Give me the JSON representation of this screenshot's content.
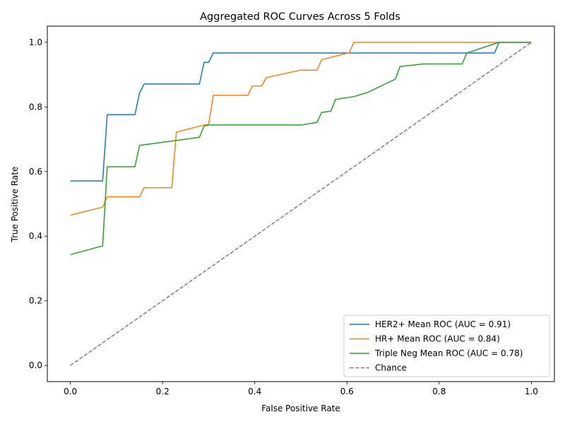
{
  "chart_data": {
    "type": "line",
    "title": "Aggregated ROC Curves Across 5 Folds",
    "xlabel": "False Positive Rate",
    "ylabel": "True Positive Rate",
    "xlim": [
      -0.05,
      1.05
    ],
    "ylim": [
      -0.05,
      1.05
    ],
    "xticks": [
      0.0,
      0.2,
      0.4,
      0.6,
      0.8,
      1.0
    ],
    "yticks": [
      0.0,
      0.2,
      0.4,
      0.6,
      0.8,
      1.0
    ],
    "xtick_labels": [
      "0.0",
      "0.2",
      "0.4",
      "0.6",
      "0.8",
      "1.0"
    ],
    "ytick_labels": [
      "0.0",
      "0.2",
      "0.4",
      "0.6",
      "0.8",
      "1.0"
    ],
    "grid": false,
    "legend_position": "lower-right",
    "series": [
      {
        "name": "HER2+ Mean ROC (AUC = 0.91)",
        "color": "#1f77b4",
        "style": "solid",
        "x": [
          0.0,
          0.07,
          0.08,
          0.14,
          0.15,
          0.16,
          0.28,
          0.29,
          0.3,
          0.31,
          0.92,
          0.93,
          1.0
        ],
        "y": [
          0.571,
          0.571,
          0.776,
          0.776,
          0.843,
          0.871,
          0.871,
          0.938,
          0.938,
          0.967,
          0.967,
          1.0,
          1.0
        ]
      },
      {
        "name": "HR+ Mean ROC (AUC = 0.84)",
        "color": "#ff7f0e",
        "style": "solid",
        "x": [
          0.0,
          0.07,
          0.08,
          0.15,
          0.16,
          0.22,
          0.23,
          0.29,
          0.3,
          0.31,
          0.385,
          0.395,
          0.415,
          0.425,
          0.5,
          0.535,
          0.545,
          0.605,
          0.615,
          1.0
        ],
        "y": [
          0.465,
          0.49,
          0.522,
          0.522,
          0.55,
          0.55,
          0.722,
          0.744,
          0.746,
          0.836,
          0.836,
          0.865,
          0.865,
          0.891,
          0.914,
          0.914,
          0.946,
          0.968,
          1.0,
          1.0
        ]
      },
      {
        "name": "Triple Neg Mean ROC (AUC = 0.78)",
        "color": "#2ca02c",
        "style": "solid",
        "x": [
          0.0,
          0.07,
          0.08,
          0.14,
          0.15,
          0.28,
          0.29,
          0.3,
          0.5,
          0.535,
          0.545,
          0.565,
          0.575,
          0.615,
          0.645,
          0.705,
          0.715,
          0.765,
          0.85,
          0.86,
          0.93,
          1.0
        ],
        "y": [
          0.343,
          0.37,
          0.615,
          0.615,
          0.681,
          0.706,
          0.741,
          0.744,
          0.744,
          0.752,
          0.783,
          0.787,
          0.823,
          0.832,
          0.845,
          0.886,
          0.925,
          0.933,
          0.933,
          0.967,
          1.0,
          1.0
        ]
      },
      {
        "name": "Chance",
        "color": "#808080",
        "style": "dashed",
        "x": [
          0.0,
          1.0
        ],
        "y": [
          0.0,
          1.0
        ]
      }
    ]
  }
}
